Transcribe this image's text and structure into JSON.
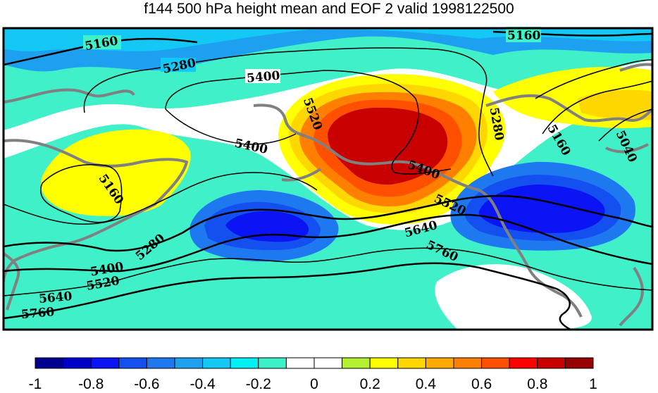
{
  "title": "f144 500 hPa height mean and EOF 2 valid 1998122500",
  "contour_labels": [
    "5160",
    "5280",
    "5400",
    "5520",
    "5640",
    "5760",
    "5040"
  ],
  "colorbar": {
    "ticks": [
      "-1",
      "-0.8",
      "-0.6",
      "-0.4",
      "-0.2",
      "0",
      "0.2",
      "0.4",
      "0.6",
      "0.8",
      "1"
    ],
    "range": [
      -1,
      1
    ],
    "colors": [
      "#00008f",
      "#0000c8",
      "#0a14f5",
      "#1450f0",
      "#1e78f0",
      "#1ea0f0",
      "#14c8f5",
      "#00f0f5",
      "#3cf0c8",
      "#ffffff",
      "#ffffff",
      "#b4f032",
      "#ffff00",
      "#ffd700",
      "#ffaa00",
      "#ff8000",
      "#ff5000",
      "#ff0000",
      "#c80000",
      "#960000"
    ]
  },
  "colors": {
    "coastline": "#808080",
    "contour": "#000000",
    "positive_max": "#c80000",
    "negative_max": "#0a14f5"
  }
}
